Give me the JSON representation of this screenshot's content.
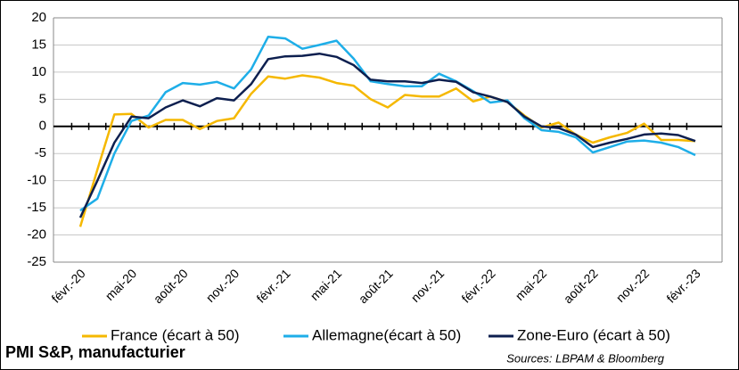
{
  "chart_data": {
    "type": "line",
    "title": "PMI S&P, manufacturier",
    "source": "Sources: LBPAM & Bloomberg",
    "categories": [
      "févr.-20",
      null,
      null,
      "mai-20",
      null,
      null,
      "août-20",
      null,
      null,
      "nov.-20",
      null,
      null,
      "févr.-21",
      null,
      null,
      "mai-21",
      null,
      null,
      "août-21",
      null,
      null,
      "nov.-21",
      null,
      null,
      "févr.-22",
      null,
      null,
      "mai-22",
      null,
      null,
      "août-22",
      null,
      null,
      "nov.-22",
      null,
      null,
      "févr.-23"
    ],
    "series": [
      {
        "name": "France (écart à 50)",
        "color": "#f5b800",
        "values": [
          -18.5,
          -8,
          2.2,
          2.3,
          -0.2,
          1.2,
          1.2,
          -0.5,
          1.0,
          1.5,
          6,
          9.2,
          8.8,
          9.4,
          9,
          8,
          7.5,
          5,
          3.5,
          5.8,
          5.5,
          5.5,
          7,
          4.6,
          5.5,
          4.5,
          2,
          -0.2,
          0.7,
          -1.5,
          -3,
          -2,
          -1.2,
          0.5,
          -2.5,
          -2.5,
          -2.7
        ]
      },
      {
        "name": "Allemagne(écart à 50)",
        "color": "#1eaee8",
        "values": [
          -15.5,
          -13.3,
          -5,
          1,
          2,
          6.3,
          8,
          7.7,
          8.2,
          7,
          10.5,
          16.5,
          16.2,
          14.3,
          15,
          15.8,
          12.5,
          8.3,
          7.8,
          7.4,
          7.4,
          9.7,
          8.3,
          6.5,
          4.4,
          4.8,
          1.5,
          -0.7,
          -1,
          -2,
          -4.8,
          -3.8,
          -2.8,
          -2.6,
          -3,
          -3.8,
          -5.3
        ]
      },
      {
        "name": "Zone-Euro (écart à 50)",
        "color": "#0d1f4f",
        "values": [
          -16.8,
          -10,
          -3,
          1.8,
          1.5,
          3.5,
          4.8,
          3.7,
          5.2,
          4.8,
          7.8,
          12.4,
          12.9,
          13,
          13.4,
          12.8,
          11.3,
          8.6,
          8.3,
          8.3,
          8,
          8.6,
          8.2,
          6.3,
          5.5,
          4.5,
          1.8,
          0,
          -0.3,
          -1.5,
          -3.8,
          -3,
          -2.3,
          -1.5,
          -1.3,
          -1.6,
          -2.7
        ]
      }
    ],
    "ylim": [
      -25,
      20
    ],
    "yticks": [
      -25,
      -20,
      -15,
      -10,
      -5,
      0,
      5,
      10,
      15,
      20
    ],
    "grid": true
  }
}
